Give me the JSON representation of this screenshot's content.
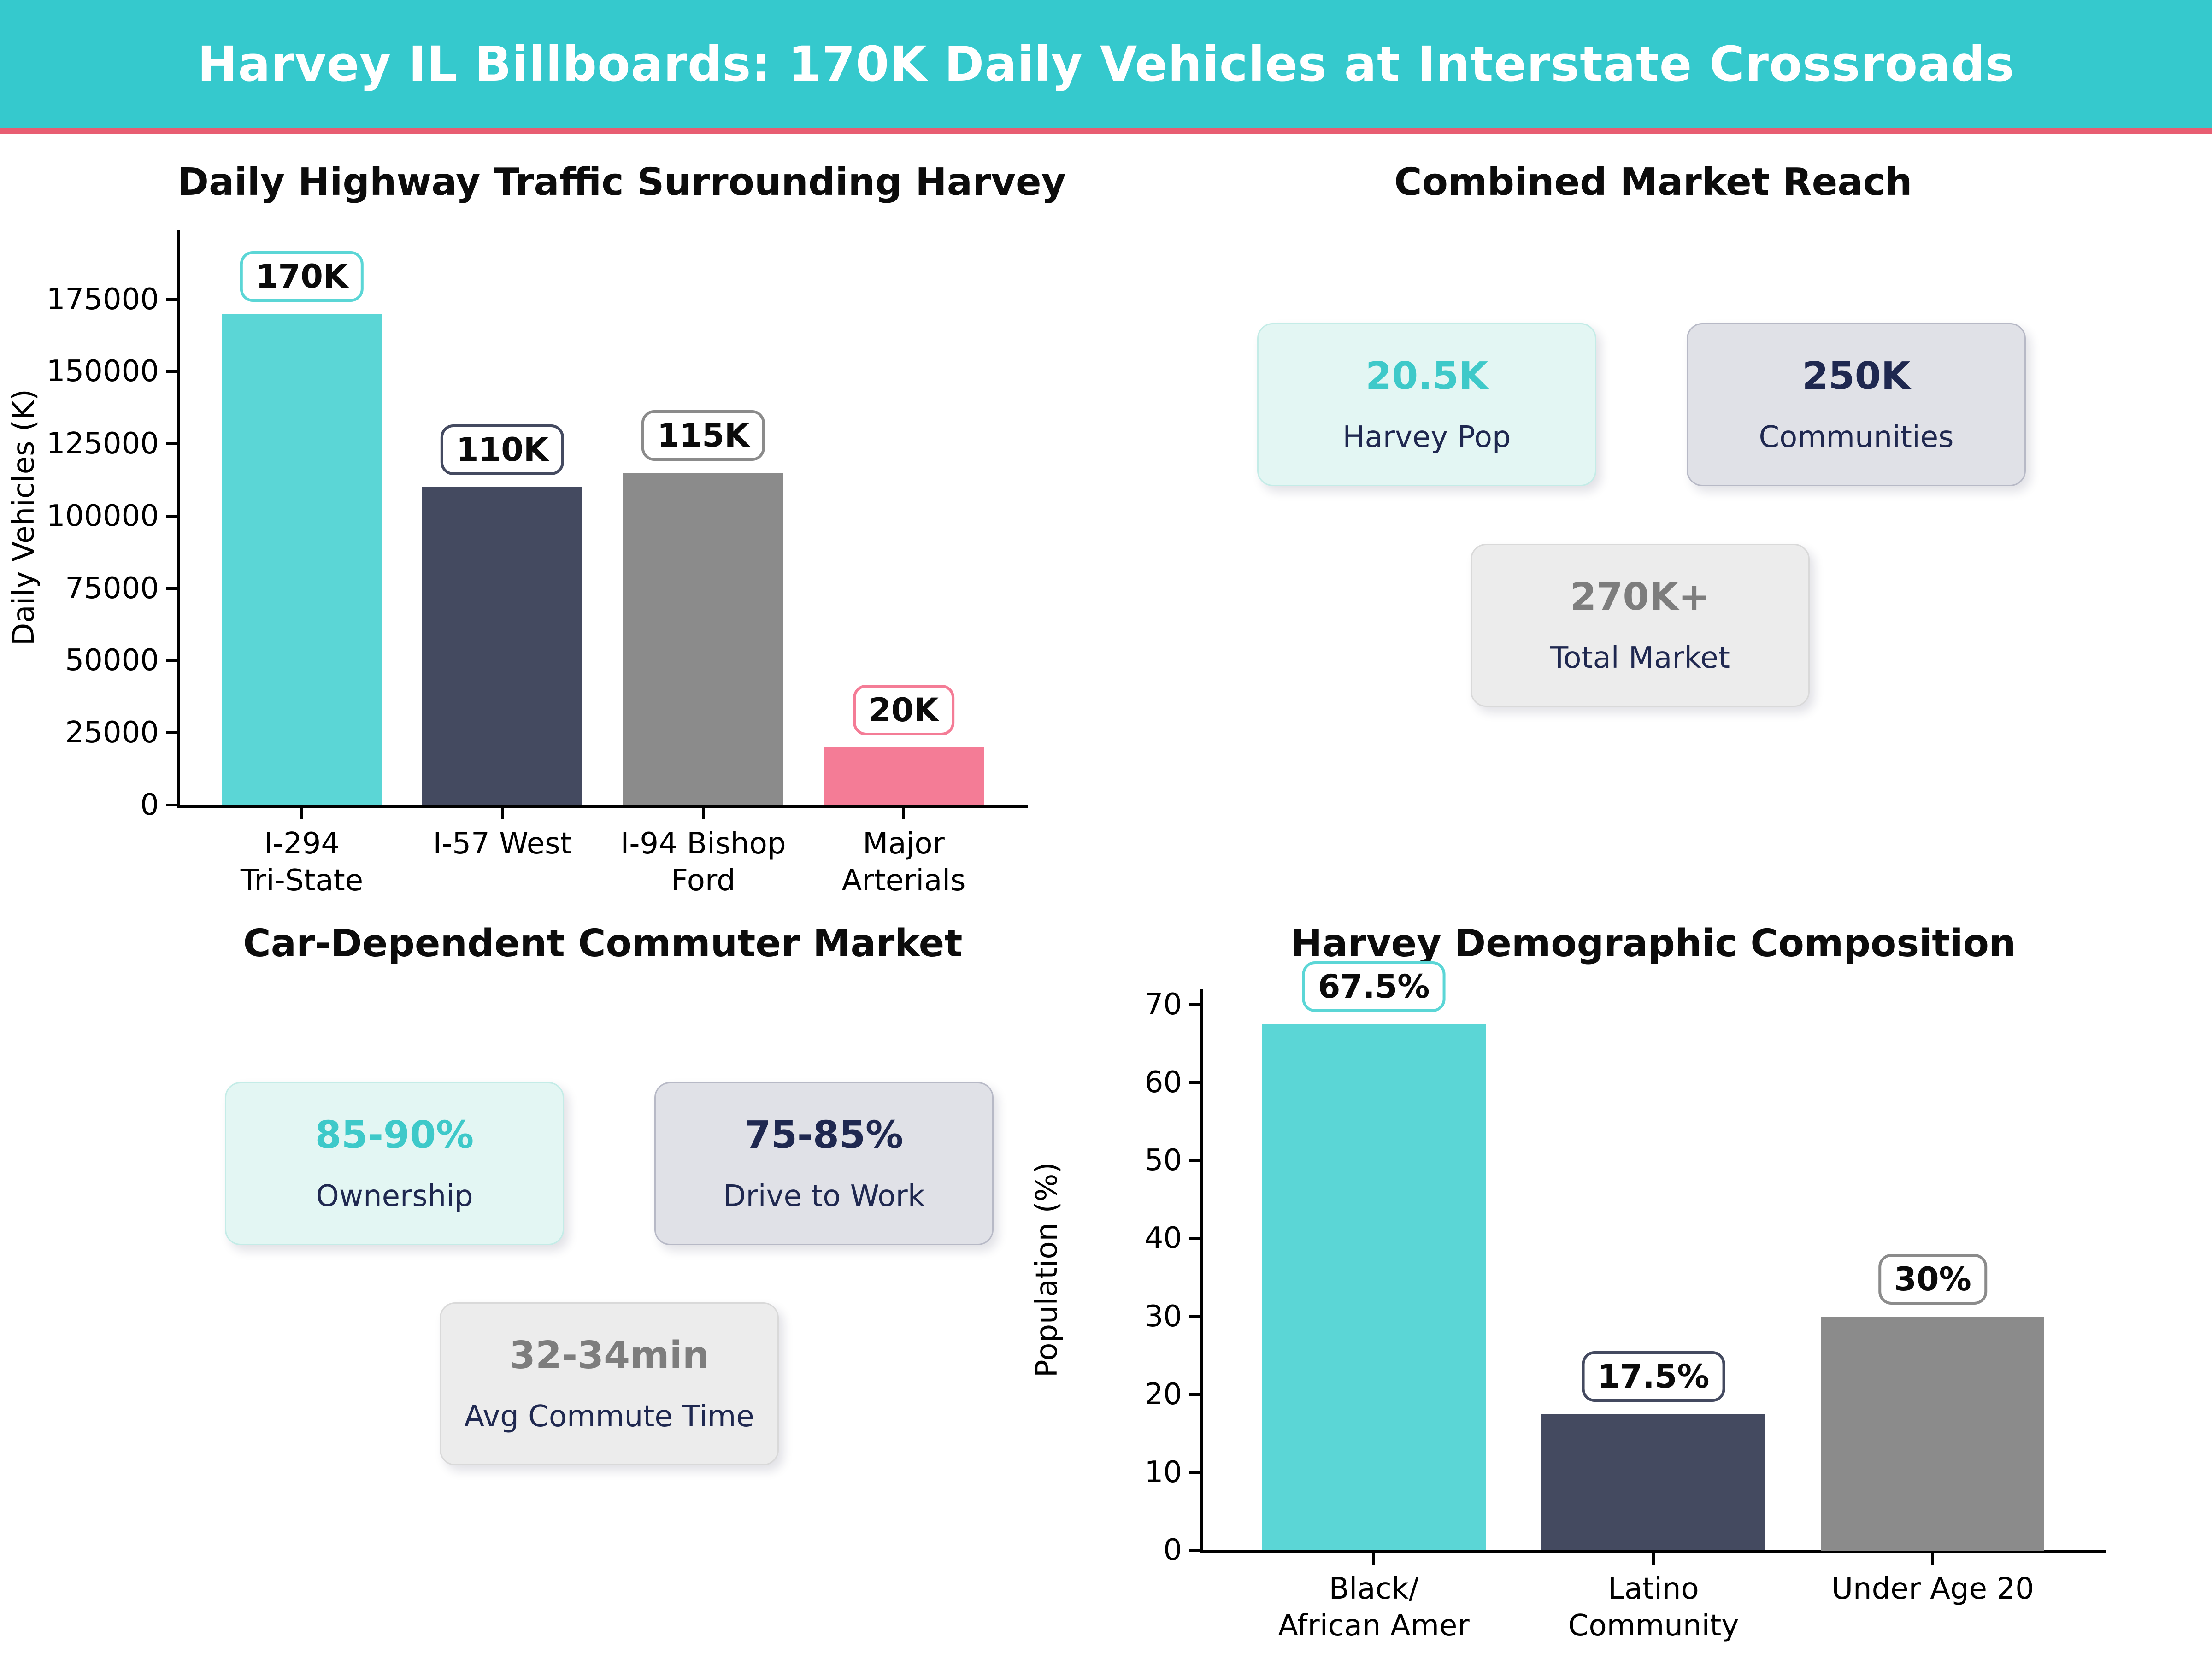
{
  "header": {
    "title": "Harvey IL Billboards: 170K Daily Vehicles at Interstate Crossroads",
    "bg_color": "#35c9cd",
    "accent_rule_color": "#e85d72"
  },
  "theme": {
    "teal_bar": "#5bd6d6",
    "navy_bar": "#444a60",
    "gray_bar": "#8b8b8b",
    "pink_bar": "#f47c96",
    "dark_text": "#1f2850",
    "stat_teal_bg": "#e3f6f3",
    "stat_slate_bg": "#e0e1e7",
    "stat_gray_bg": "#ececec",
    "stat_teal_value": "#3ec9c9",
    "stat_gray_value": "#7d7d7d"
  },
  "chart_data": [
    {
      "type": "bar",
      "title": "Daily Highway Traffic Surrounding Harvey",
      "xlabel": "",
      "ylabel": "Daily Vehicles (K)",
      "categories": [
        "I-294\nTri-State",
        "I-57 West",
        "I-94 Bishop\nFord",
        "Major\nArterials"
      ],
      "values": [
        170000,
        110000,
        115000,
        20000
      ],
      "value_labels": [
        "170K",
        "110K",
        "115K",
        "20K"
      ],
      "bar_colors": [
        "#5bd6d6",
        "#444a60",
        "#8b8b8b",
        "#f47c96"
      ],
      "yticks": [
        0,
        25000,
        50000,
        75000,
        100000,
        125000,
        150000,
        175000
      ],
      "ylim": [
        0,
        199000
      ],
      "grid": false,
      "legend": "none"
    },
    {
      "type": "bar",
      "title": "Harvey Demographic Composition",
      "xlabel": "",
      "ylabel": "Population (%)",
      "categories": [
        "Black/\nAfrican Amer",
        "Latino\nCommunity",
        "Under Age 20"
      ],
      "values": [
        67.5,
        17.5,
        30
      ],
      "value_labels": [
        "67.5%",
        "17.5%",
        "30%"
      ],
      "bar_colors": [
        "#5bd6d6",
        "#444a60",
        "#8b8b8b"
      ],
      "yticks": [
        0,
        10,
        20,
        30,
        40,
        50,
        60,
        70
      ],
      "ylim": [
        0,
        72
      ],
      "grid": false,
      "legend": "none"
    }
  ],
  "panels": [
    {
      "title": "Combined Market Reach",
      "boxes": [
        {
          "value": "20.5K",
          "label": "Harvey Pop",
          "style": "teal"
        },
        {
          "value": "250K",
          "label": "Communities",
          "style": "slate"
        },
        {
          "value": "270K+",
          "label": "Total Market",
          "style": "gray"
        }
      ]
    },
    {
      "title": "Car-Dependent Commuter Market",
      "boxes": [
        {
          "value": "85-90%",
          "label": "Ownership",
          "style": "teal"
        },
        {
          "value": "75-85%",
          "label": "Drive to Work",
          "style": "slate"
        },
        {
          "value": "32-34min",
          "label": "Avg Commute Time",
          "style": "gray"
        }
      ]
    }
  ]
}
